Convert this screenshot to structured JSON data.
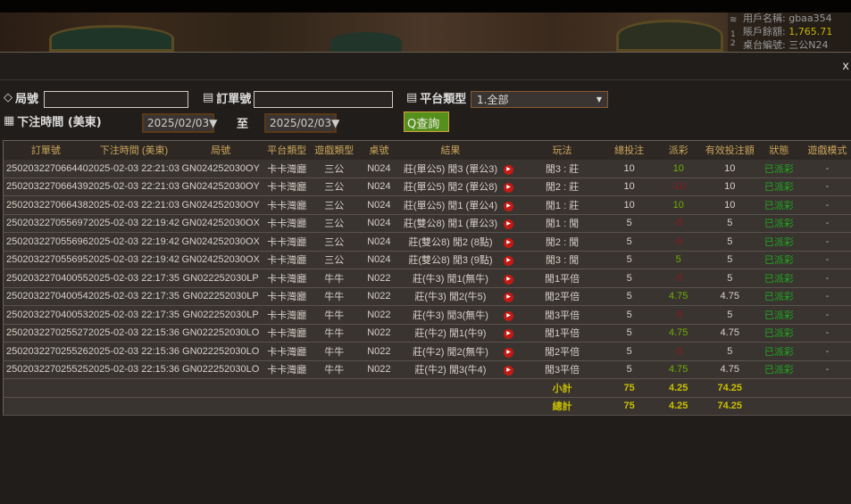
{
  "header": {
    "user_label": "用戶名稱:",
    "user": "gbaa354",
    "balance_label": "賬戶餘額:",
    "balance": "1,765.71",
    "table_label": "桌台編號:",
    "table": "三公N24",
    "side_nums": "1 2"
  },
  "dialog": {
    "close": "x"
  },
  "filters": {
    "round_label": "局號",
    "round_value": "",
    "order_label": "訂單號",
    "order_value": "",
    "platform_label": "平台類型",
    "platform_value": "1.全部",
    "time_label": "下注時間 (美東)",
    "date_from": "2025/02/03",
    "to_label": "至",
    "date_to": "2025/02/03",
    "query": "查詢"
  },
  "columns": [
    "訂單號",
    "下注時間 (美東)",
    "局號",
    "平台類型",
    "遊戲類型",
    "桌號",
    "結果",
    "",
    "玩法",
    "總投注",
    "派彩",
    "有效投注額",
    "狀態",
    "遊戲模式"
  ],
  "rows": [
    [
      "250203227066440",
      "2025-02-03 22:21:03",
      "GN024252030OY",
      "卡卡灣廳",
      "三公",
      "N024",
      "莊(單公5) 閒3 (單公3)",
      "閒3 : 莊",
      "10",
      "10",
      "10",
      "已派彩",
      "-"
    ],
    [
      "250203227066439",
      "2025-02-03 22:21:03",
      "GN024252030OY",
      "卡卡灣廳",
      "三公",
      "N024",
      "莊(單公5) 閒2 (單公8)",
      "閒2 : 莊",
      "10",
      "-10",
      "10",
      "已派彩",
      "-"
    ],
    [
      "250203227066438",
      "2025-02-03 22:21:03",
      "GN024252030OY",
      "卡卡灣廳",
      "三公",
      "N024",
      "莊(單公5) 閒1 (單公4)",
      "閒1 : 莊",
      "10",
      "10",
      "10",
      "已派彩",
      "-"
    ],
    [
      "250203227055697",
      "2025-02-03 22:19:42",
      "GN024252030OX",
      "卡卡灣廳",
      "三公",
      "N024",
      "莊(雙公8) 閒1 (單公3)",
      "閒1 : 閒",
      "5",
      "-5",
      "5",
      "已派彩",
      "-"
    ],
    [
      "250203227055696",
      "2025-02-03 22:19:42",
      "GN024252030OX",
      "卡卡灣廳",
      "三公",
      "N024",
      "莊(雙公8) 閒2 (8點)",
      "閒2 : 閒",
      "5",
      "-5",
      "5",
      "已派彩",
      "-"
    ],
    [
      "250203227055695",
      "2025-02-03 22:19:42",
      "GN024252030OX",
      "卡卡灣廳",
      "三公",
      "N024",
      "莊(雙公8) 閒3 (9點)",
      "閒3 : 閒",
      "5",
      "5",
      "5",
      "已派彩",
      "-"
    ],
    [
      "250203227040055",
      "2025-02-03 22:17:35",
      "GN022252030LP",
      "卡卡灣廳",
      "牛牛",
      "N022",
      "莊(牛3) 閒1(無牛)",
      "閒1平倍",
      "5",
      "-5",
      "5",
      "已派彩",
      "-"
    ],
    [
      "250203227040054",
      "2025-02-03 22:17:35",
      "GN022252030LP",
      "卡卡灣廳",
      "牛牛",
      "N022",
      "莊(牛3) 閒2(牛5)",
      "閒2平倍",
      "5",
      "4.75",
      "4.75",
      "已派彩",
      "-"
    ],
    [
      "250203227040053",
      "2025-02-03 22:17:35",
      "GN022252030LP",
      "卡卡灣廳",
      "牛牛",
      "N022",
      "莊(牛3) 閒3(無牛)",
      "閒3平倍",
      "5",
      "-5",
      "5",
      "已派彩",
      "-"
    ],
    [
      "250203227025527",
      "2025-02-03 22:15:36",
      "GN022252030LO",
      "卡卡灣廳",
      "牛牛",
      "N022",
      "莊(牛2) 閒1(牛9)",
      "閒1平倍",
      "5",
      "4.75",
      "4.75",
      "已派彩",
      "-"
    ],
    [
      "250203227025526",
      "2025-02-03 22:15:36",
      "GN022252030LO",
      "卡卡灣廳",
      "牛牛",
      "N022",
      "莊(牛2) 閒2(無牛)",
      "閒2平倍",
      "5",
      "-5",
      "5",
      "已派彩",
      "-"
    ],
    [
      "250203227025525",
      "2025-02-03 22:15:36",
      "GN022252030LO",
      "卡卡灣廳",
      "牛牛",
      "N022",
      "莊(牛2) 閒3(牛4)",
      "閒3平倍",
      "5",
      "4.75",
      "4.75",
      "已派彩",
      "-"
    ]
  ],
  "subtotal": {
    "label": "小計",
    "bet": "75",
    "payout": "4.25",
    "valid": "74.25"
  },
  "total": {
    "label": "總計",
    "bet": "75",
    "payout": "4.25",
    "valid": "74.25"
  },
  "colors": {
    "positive": "#6cb000",
    "negative": "#8a1a22",
    "status": "#1fa81f",
    "header_text": "#c9a55a",
    "sum_text": "#c8c000",
    "query_button": "#56901c"
  }
}
